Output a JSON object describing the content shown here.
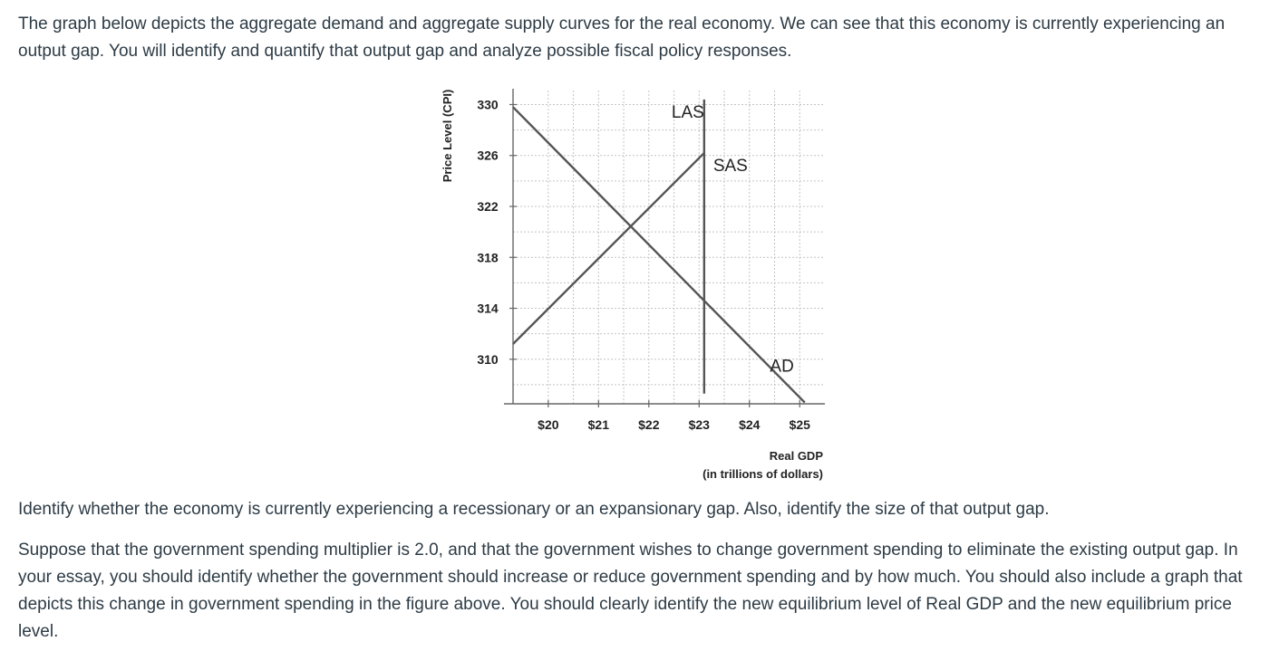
{
  "text": {
    "intro": "The graph below depicts the aggregate demand and aggregate supply curves for the real economy. We can see that this economy is currently experiencing an output gap. You will identify and quantify that output gap and analyze possible fiscal policy responses.",
    "question1": "Identify whether the economy is currently experiencing a recessionary or an expansionary gap. Also, identify the size of that output gap.",
    "question2": "Suppose that the government spending multiplier is 2.0, and that the government wishes to change government spending to eliminate the existing output gap. In your essay, you should identify whether the government should increase or reduce government spending and by how much. You should also include a graph that depicts this change in government spending in the figure above. You should clearly identify the new equilibrium level of Real GDP and the new equilibrium price level."
  },
  "chart_data": {
    "type": "line",
    "title": "",
    "xlabel": "Real GDP",
    "xlabel_sub": "(in trillions of dollars)",
    "ylabel": "Price Level (CPI)",
    "x_ticks": [
      "$20",
      "$21",
      "$22",
      "$23",
      "$24",
      "$25"
    ],
    "y_ticks": [
      "330",
      "326",
      "322",
      "318",
      "314",
      "310"
    ],
    "xlim": [
      19.3,
      25.5
    ],
    "ylim": [
      306.5,
      331.1
    ],
    "grid": true,
    "legend": "none",
    "series": [
      {
        "name": "LAS",
        "points": [
          [
            23.1,
            307.3
          ],
          [
            23.1,
            330.4
          ]
        ]
      },
      {
        "name": "SAS",
        "points": [
          [
            19.3,
            311.2
          ],
          [
            23.1,
            326.2
          ]
        ]
      },
      {
        "name": "AD",
        "points": [
          [
            19.3,
            329.8
          ],
          [
            25.1,
            306.6
          ]
        ]
      }
    ],
    "curve_labels": [
      {
        "text": "LAS",
        "series": "LAS"
      },
      {
        "text": "SAS",
        "series": "SAS"
      },
      {
        "text": "AD",
        "series": "AD"
      }
    ]
  }
}
